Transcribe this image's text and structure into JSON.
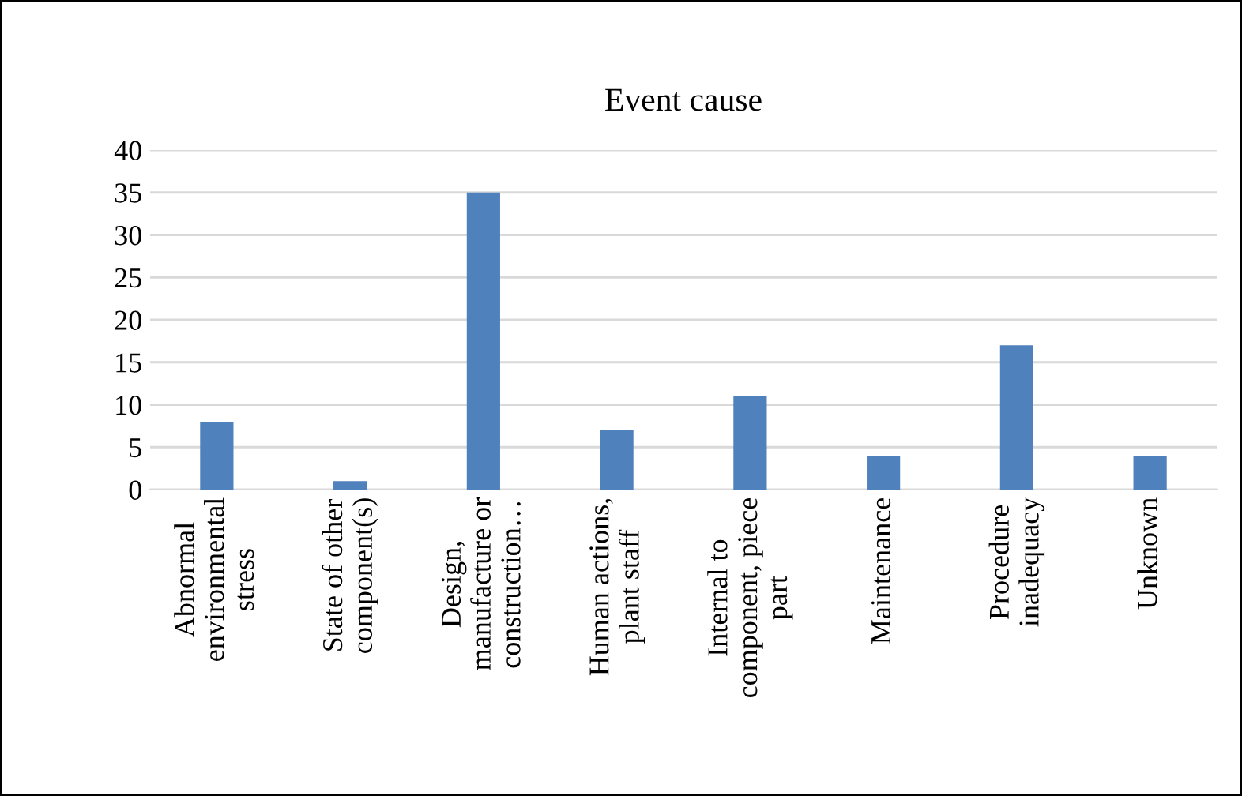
{
  "chart_data": {
    "type": "bar",
    "title": "Event cause",
    "categories": [
      "Abnormal\nenvironmental\nstress",
      "State of other\ncomponent(s)",
      "Design,\nmanufacture or\nconstruction…",
      "Human actions,\nplant staff",
      "Internal to\ncomponent, piece\npart",
      "Maintenance",
      "Procedure\ninadequacy",
      "Unknown"
    ],
    "values": [
      8,
      1,
      35,
      7,
      11,
      4,
      17,
      4
    ],
    "color": "#4f81bd",
    "ylim": [
      0,
      40
    ],
    "yticks": [
      0,
      5,
      10,
      15,
      20,
      25,
      30,
      35,
      40
    ],
    "grid": "y",
    "legend": false
  }
}
